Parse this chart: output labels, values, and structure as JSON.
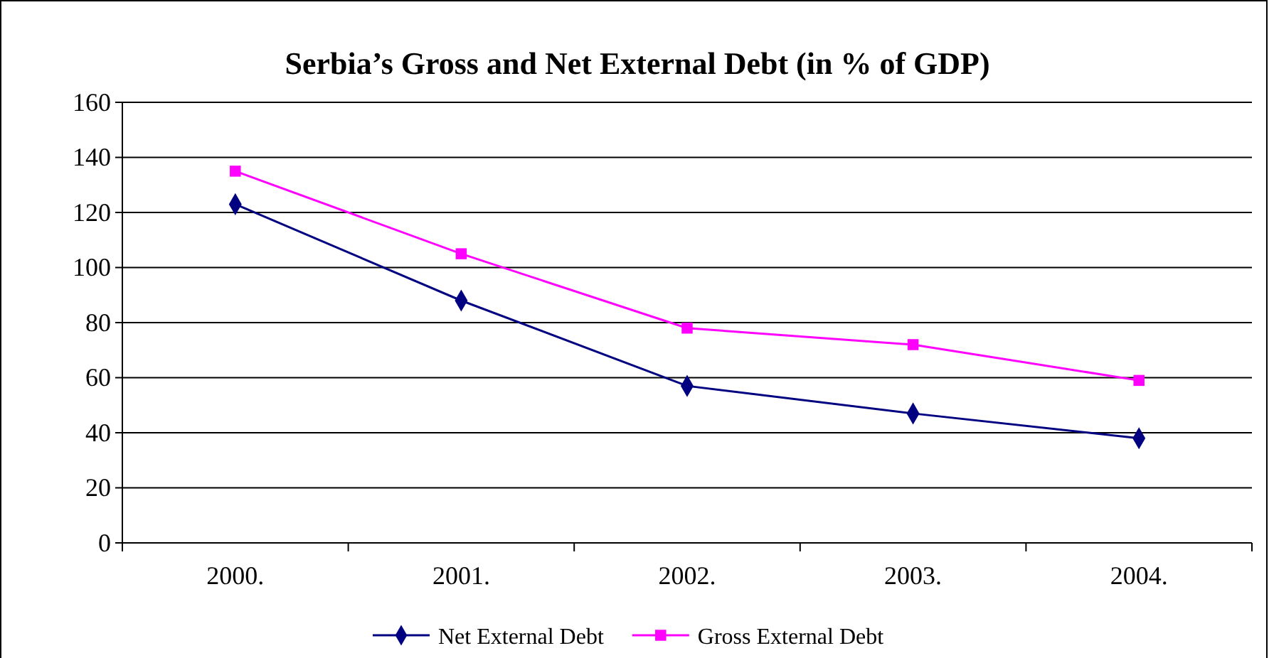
{
  "chart_data": {
    "type": "line",
    "title": "Serbia’s Gross and Net External Debt (in % of GDP)",
    "categories": [
      "2000.",
      "2001.",
      "2002.",
      "2003.",
      "2004."
    ],
    "series": [
      {
        "name": "Net External Debt",
        "color": "#000080",
        "marker": "diamond",
        "values": [
          123,
          88,
          57,
          47,
          38
        ]
      },
      {
        "name": "Gross External Debt",
        "color": "#ff00ff",
        "marker": "square",
        "values": [
          135,
          105,
          78,
          72,
          59
        ]
      }
    ],
    "ylim": [
      0,
      160
    ],
    "yticks": [
      0,
      20,
      40,
      60,
      80,
      100,
      120,
      140,
      160
    ],
    "grid": "y",
    "legend": "bottom",
    "line_style": "solid"
  }
}
